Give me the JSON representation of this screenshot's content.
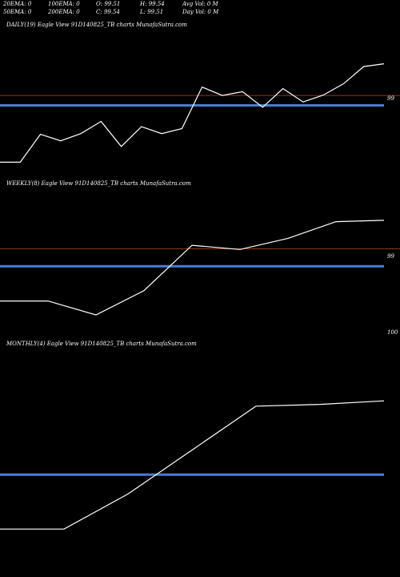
{
  "stats": {
    "row1": [
      "20EMA: 0",
      "100EMA: 0",
      "O: 99.51",
      "H: 99.54",
      "Avg Vol: 0  M"
    ],
    "row2": [
      "50EMA: 0",
      "200EMA: 0",
      "C: 99.54",
      "L: 99.51",
      "Day Vol: 0  M"
    ]
  },
  "chart_data": [
    {
      "type": "line",
      "title": "DAILY(19) Eagle  View  91D140825_TB charts MunafaSutra.com",
      "y_labels": [
        "99"
      ],
      "x": [
        1,
        2,
        3,
        4,
        5,
        6,
        7,
        8,
        9,
        10,
        11,
        12,
        13,
        14,
        15,
        16,
        17,
        18,
        19,
        20
      ],
      "series": [
        {
          "color": "#ffffff",
          "values": [
            99.415,
            99.415,
            99.488,
            99.471,
            99.49,
            99.522,
            99.456,
            99.508,
            99.49,
            99.503,
            99.612,
            99.59,
            99.6,
            99.559,
            99.608,
            99.573,
            99.591,
            99.621,
            99.666,
            99.673
          ]
        },
        {
          "color": "#4a7bd6",
          "values": [
            99.564,
            99.564,
            99.564,
            99.564,
            99.564,
            99.564,
            99.564,
            99.564,
            99.564,
            99.564,
            99.564,
            99.564,
            99.564,
            99.564,
            99.564,
            99.564,
            99.564,
            99.564,
            99.564,
            99.564
          ]
        },
        {
          "color": "#8b3a1a",
          "values": [
            99.59,
            99.59,
            99.59,
            99.59,
            99.59,
            99.59,
            99.59,
            99.59,
            99.59,
            99.59,
            99.59,
            99.59,
            99.59,
            99.59,
            99.59,
            99.59,
            99.59,
            99.59,
            99.59,
            99.59
          ]
        }
      ],
      "ylim": [
        99.38,
        99.75
      ]
    },
    {
      "type": "line",
      "title": "WEEKLY(8) Eagle  View  91D140825_TB charts MunafaSutra.com",
      "y_labels": [
        "99",
        "100"
      ],
      "x": [
        1,
        2,
        3,
        4,
        5,
        6,
        7,
        8,
        9
      ],
      "series": [
        {
          "color": "#ffffff",
          "values": [
            99.44,
            99.44,
            99.4,
            99.47,
            99.6,
            99.588,
            99.62,
            99.668,
            99.672
          ]
        },
        {
          "color": "#4a7bd6",
          "values": [
            99.54,
            99.54,
            99.54,
            99.54,
            99.54,
            99.54,
            99.54,
            99.54,
            99.54
          ]
        },
        {
          "color": "#8b3a1a",
          "values": [
            99.59,
            99.59,
            99.59,
            99.59,
            99.59,
            99.59,
            99.59,
            99.59,
            99.59
          ]
        }
      ],
      "ylim": [
        99.34,
        99.75
      ]
    },
    {
      "type": "line",
      "title": "MONTHLY(4) Eagle  View  91D140825_TB charts MunafaSutra.com",
      "y_labels": [],
      "x": [
        1,
        2,
        3,
        4,
        5,
        6,
        7
      ],
      "series": [
        {
          "color": "#ffffff",
          "values": [
            99.1,
            99.1,
            99.3,
            99.55,
            99.8,
            99.81,
            99.83
          ]
        },
        {
          "color": "#4a7bd6",
          "values": [
            99.41,
            99.41,
            99.41,
            99.41,
            99.41,
            99.41,
            99.41
          ]
        }
      ],
      "ylim": [
        98.85,
        100.1
      ]
    }
  ]
}
